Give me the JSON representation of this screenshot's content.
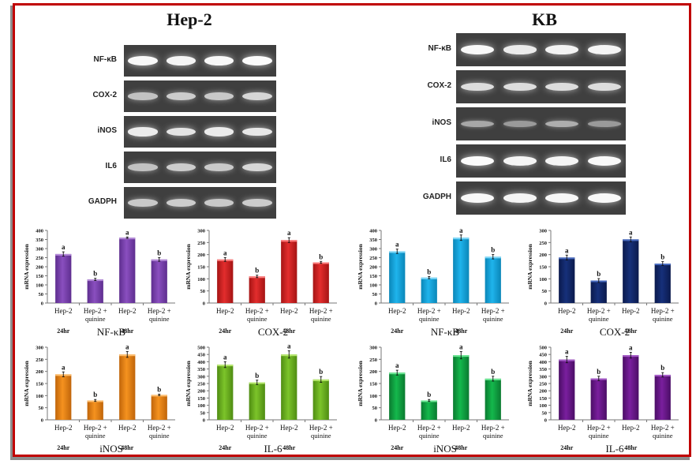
{
  "colors": {
    "frame": "#c00000",
    "frame_shadow": "#8c8c8c",
    "gel_bg": "#3f3f3f"
  },
  "panels": [
    {
      "title": "Hep-2",
      "blot_rows": [
        {
          "label": "NF-κB",
          "intensity": [
            0.95,
            0.92,
            0.95,
            0.97
          ]
        },
        {
          "label": "COX-2",
          "intensity": [
            0.55,
            0.62,
            0.6,
            0.7
          ]
        },
        {
          "label": "iNOS",
          "intensity": [
            0.85,
            0.8,
            0.85,
            0.82
          ]
        },
        {
          "label": "IL6",
          "intensity": [
            0.55,
            0.62,
            0.6,
            0.7
          ]
        },
        {
          "label": "GADPH",
          "intensity": [
            0.6,
            0.62,
            0.6,
            0.62
          ]
        }
      ]
    },
    {
      "title": "KB",
      "blot_rows": [
        {
          "label": "NF-κB",
          "intensity": [
            0.95,
            0.85,
            0.9,
            0.92
          ]
        },
        {
          "label": "COX-2",
          "intensity": [
            0.75,
            0.75,
            0.75,
            0.75
          ]
        },
        {
          "label": "iNOS",
          "intensity": [
            0.35,
            0.25,
            0.4,
            0.25
          ]
        },
        {
          "label": "IL6",
          "intensity": [
            0.97,
            0.92,
            0.92,
            0.95
          ]
        },
        {
          "label": "GADPH",
          "intensity": [
            0.95,
            0.92,
            0.93,
            0.95
          ]
        }
      ]
    }
  ],
  "chart_data": [
    {
      "type": "bar",
      "panel": "Hep-2",
      "title": "NF-κB",
      "ylabel": "mRNA expression",
      "categories": [
        "Hep-2",
        "Hep-2 + quinine",
        "Hep-2",
        "Hep-2 + quinine"
      ],
      "values": [
        270,
        130,
        360,
        240
      ],
      "errors": [
        12,
        6,
        4,
        10
      ],
      "sig_labels": [
        "a",
        "b",
        "a",
        "b"
      ],
      "ylim": [
        0,
        400
      ],
      "ticks": [
        0,
        50,
        100,
        150,
        200,
        250,
        300,
        350,
        400
      ],
      "time_labels": [
        "24hr",
        "48hr"
      ],
      "color": "#8a4fbf",
      "color_light": "#b48ad8",
      "color_dark": "#5e2e8f"
    },
    {
      "type": "bar",
      "panel": "Hep-2",
      "title": "COX-2",
      "ylabel": "mRNA expression",
      "categories": [
        "Hep-2",
        "Hep-2 + quinine",
        "Hep-2",
        "Hep-2 + quinine"
      ],
      "values": [
        180,
        110,
        260,
        168
      ],
      "errors": [
        8,
        5,
        10,
        4
      ],
      "sig_labels": [
        "a",
        "b",
        "a",
        "b"
      ],
      "ylim": [
        0,
        300
      ],
      "ticks": [
        0,
        50,
        100,
        150,
        200,
        250,
        300
      ],
      "time_labels": [
        "24hr",
        "48hr"
      ],
      "color": "#e32d2d",
      "color_light": "#ff8080",
      "color_dark": "#a51414"
    },
    {
      "type": "bar",
      "panel": "KB",
      "title": "NF-κB",
      "ylabel": "mRNA expression",
      "categories": [
        "Hep-2",
        "Hep-2 + quinine",
        "Hep-2",
        "Hep-2 + quinine"
      ],
      "values": [
        285,
        140,
        360,
        255
      ],
      "errors": [
        12,
        6,
        15,
        12
      ],
      "sig_labels": [
        "a",
        "b",
        "a",
        "b"
      ],
      "ylim": [
        0,
        400
      ],
      "ticks": [
        0,
        50,
        100,
        150,
        200,
        250,
        300,
        350,
        400
      ],
      "time_labels": [
        "24hr",
        "48hr"
      ],
      "color": "#1fb4ec",
      "color_light": "#7ed8f8",
      "color_dark": "#0a86b8"
    },
    {
      "type": "bar",
      "panel": "KB",
      "title": "COX-2",
      "ylabel": "mRNA expression",
      "categories": [
        "Hep-2",
        "Hep-2 + quinine",
        "Hep-2",
        "Hep-2 + quinine"
      ],
      "values": [
        188,
        93,
        263,
        163
      ],
      "errors": [
        10,
        8,
        10,
        8
      ],
      "sig_labels": [
        "a",
        "b",
        "a",
        "b"
      ],
      "ylim": [
        0,
        300
      ],
      "ticks": [
        0,
        50,
        100,
        150,
        200,
        250,
        300
      ],
      "time_labels": [
        "24hr",
        "48hr"
      ],
      "color": "#16307a",
      "color_light": "#4a6cc0",
      "color_dark": "#0b1a4d"
    },
    {
      "type": "bar",
      "panel": "Hep-2",
      "title": "iNOS",
      "ylabel": "mRNA expression",
      "categories": [
        "Hep-2",
        "Hep-2 + quinine",
        "Hep-2",
        "Hep-2 + quinine"
      ],
      "values": [
        188,
        80,
        270,
        103
      ],
      "errors": [
        10,
        4,
        12,
        3
      ],
      "sig_labels": [
        "a",
        "b",
        "a",
        "b"
      ],
      "ylim": [
        0,
        300
      ],
      "ticks": [
        0,
        50,
        100,
        150,
        200,
        250,
        300
      ],
      "time_labels": [
        "24hr",
        "48hr"
      ],
      "color": "#f5921f",
      "color_light": "#ffc070",
      "color_dark": "#c0650a"
    },
    {
      "type": "bar",
      "panel": "Hep-2",
      "title": "IL-6",
      "ylabel": "mRNA expression",
      "categories": [
        "Hep-2",
        "Hep-2 + quinine",
        "Hep-2",
        "Hep-2 + quinine"
      ],
      "values": [
        380,
        258,
        450,
        278
      ],
      "errors": [
        20,
        15,
        25,
        20
      ],
      "sig_labels": [
        "a",
        "b",
        "a",
        "b"
      ],
      "ylim": [
        0,
        500
      ],
      "ticks": [
        0,
        50,
        100,
        150,
        200,
        250,
        300,
        350,
        400,
        450,
        500
      ],
      "time_labels": [
        "24hr",
        "48hr"
      ],
      "color": "#7cc42a",
      "color_light": "#b8e870",
      "color_dark": "#4f8c12"
    },
    {
      "type": "bar",
      "panel": "KB",
      "title": "iNOS",
      "ylabel": "mRNA expression",
      "categories": [
        "Hep-2",
        "Hep-2 + quinine",
        "Hep-2",
        "Hep-2 + quinine"
      ],
      "values": [
        195,
        80,
        267,
        170
      ],
      "errors": [
        10,
        4,
        15,
        10
      ],
      "sig_labels": [
        "a",
        "b",
        "a",
        "b"
      ],
      "ylim": [
        0,
        300
      ],
      "ticks": [
        0,
        50,
        100,
        150,
        200,
        250,
        300
      ],
      "time_labels": [
        "24hr",
        "48hr"
      ],
      "color": "#14b84c",
      "color_light": "#6ee896",
      "color_dark": "#0a7a30"
    },
    {
      "type": "bar",
      "panel": "KB",
      "title": "IL-6",
      "ylabel": "mRNA expression",
      "categories": [
        "Hep-2",
        "Hep-2 + quinine",
        "Hep-2",
        "Hep-2 + quinine"
      ],
      "values": [
        415,
        285,
        445,
        310
      ],
      "errors": [
        22,
        15,
        20,
        15
      ],
      "sig_labels": [
        "a",
        "b",
        "a",
        "b"
      ],
      "ylim": [
        0,
        500
      ],
      "ticks": [
        0,
        50,
        100,
        150,
        200,
        250,
        300,
        350,
        400,
        450,
        500
      ],
      "time_labels": [
        "24hr",
        "48hr"
      ],
      "color": "#7a1f9e",
      "color_light": "#a65cc8",
      "color_dark": "#4b0e66"
    }
  ]
}
